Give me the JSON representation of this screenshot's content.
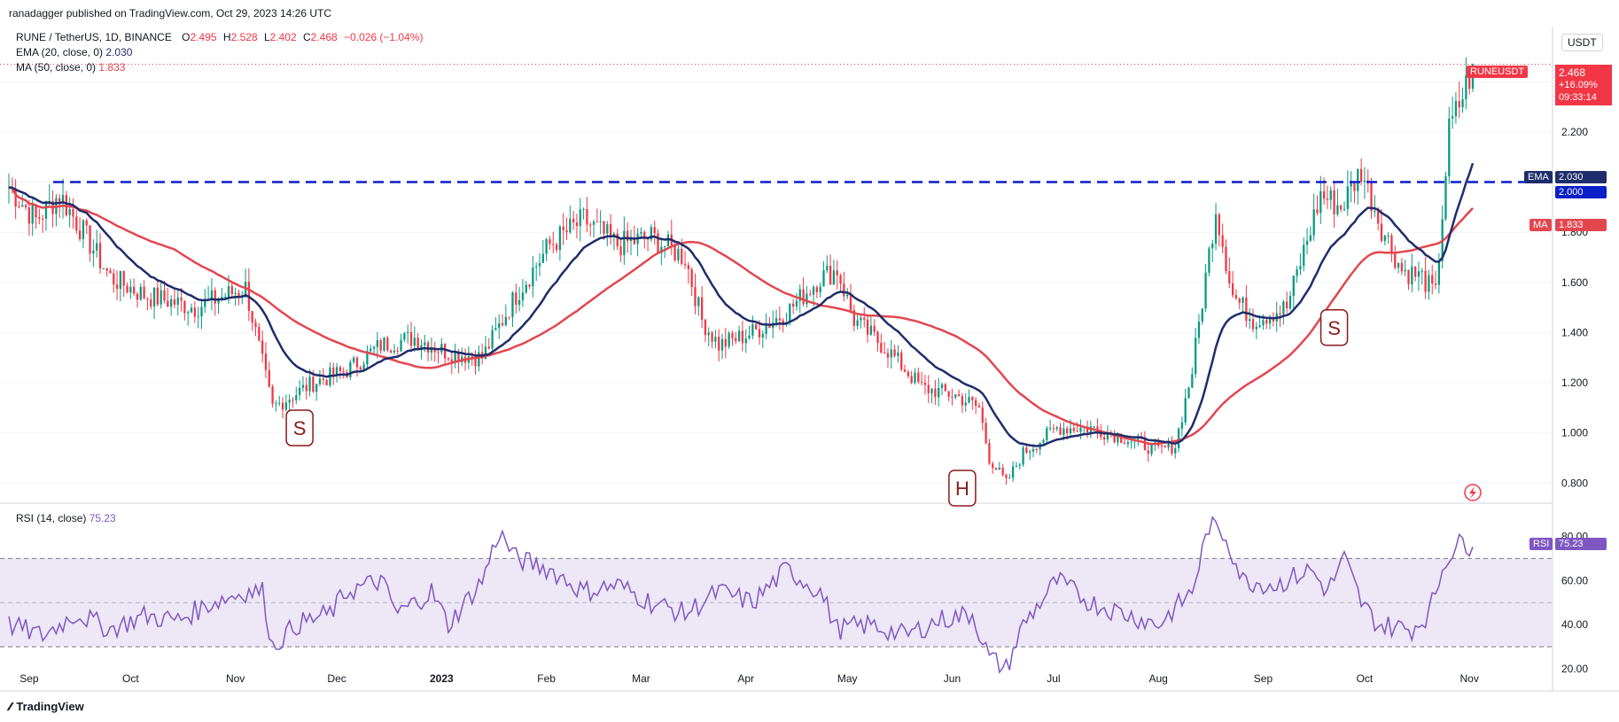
{
  "attribution": "ranadagger published on TradingView.com, Oct 29, 2023 14:26 UTC",
  "brand": "TradingView",
  "header": {
    "symbol": "RUNE / TetherUS, 1D, BINANCE",
    "ohlc": {
      "open": "2.495",
      "high": "2.528",
      "low": "2.402",
      "close": "2.468",
      "change": "−0.026 (−1.04%)"
    },
    "ema_label": "EMA (20, close, 0)",
    "ema_value": "2.030",
    "ma_label": "MA (50, close, 0)",
    "ma_value": "1.833"
  },
  "price_axis": {
    "currency": "USDT",
    "ticks": [
      "2.200",
      "1.800",
      "1.600",
      "1.400",
      "1.200",
      "1.000",
      "0.800"
    ]
  },
  "price_tag": {
    "ticker": "RUNEUSDT",
    "price": "2.468",
    "change": "+16.09%",
    "countdown": "09:33:14"
  },
  "level_tags": {
    "ema_label": "EMA",
    "ema_value": "2.030",
    "level_value": "2.000",
    "ma_label": "MA",
    "ma_value": "1.833"
  },
  "patterns": [
    "S",
    "H",
    "S"
  ],
  "rsi": {
    "label": "RSI (14, close)",
    "value": "75.23",
    "tag_label": "RSI",
    "tag_value": "75.23",
    "ticks": [
      "80.00",
      "60.00",
      "40.00",
      "20.00"
    ]
  },
  "time_axis": [
    "Sep",
    "Oct",
    "Nov",
    "Dec",
    "2023",
    "Feb",
    "Mar",
    "Apr",
    "May",
    "Jun",
    "Jul",
    "Aug",
    "Sep",
    "Oct",
    "Nov"
  ],
  "colors": {
    "up": "#089981",
    "down": "#f23645",
    "ema": "#1f2d6b",
    "ma": "#e2474f",
    "level": "#0b1fc8",
    "rsi": "#7e57c2",
    "rsi_band": "#ede7f6"
  },
  "chart_data": {
    "type": "candlestick",
    "horizontal_level": 2.0,
    "price_range": [
      0.72,
      2.62
    ],
    "rsi_range": [
      10,
      95
    ],
    "rsi_bands": [
      30,
      50,
      70
    ],
    "anchors": {
      "close": [
        [
          0,
          1.98
        ],
        [
          8,
          1.85
        ],
        [
          15,
          1.95
        ],
        [
          22,
          1.8
        ],
        [
          30,
          1.62
        ],
        [
          40,
          1.55
        ],
        [
          55,
          1.5
        ],
        [
          70,
          1.58
        ],
        [
          78,
          1.1
        ],
        [
          90,
          1.2
        ],
        [
          100,
          1.25
        ],
        [
          110,
          1.35
        ],
        [
          120,
          1.38
        ],
        [
          130,
          1.32
        ],
        [
          140,
          1.3
        ],
        [
          150,
          1.55
        ],
        [
          160,
          1.75
        ],
        [
          170,
          1.85
        ],
        [
          180,
          1.75
        ],
        [
          190,
          1.78
        ],
        [
          200,
          1.7
        ],
        [
          205,
          1.45
        ],
        [
          210,
          1.35
        ],
        [
          220,
          1.4
        ],
        [
          230,
          1.48
        ],
        [
          240,
          1.62
        ],
        [
          245,
          1.65
        ],
        [
          250,
          1.45
        ],
        [
          260,
          1.33
        ],
        [
          270,
          1.18
        ],
        [
          280,
          1.15
        ],
        [
          287,
          1.1
        ],
        [
          290,
          0.9
        ],
        [
          295,
          0.8
        ],
        [
          300,
          0.92
        ],
        [
          310,
          1.02
        ],
        [
          320,
          1.02
        ],
        [
          330,
          0.98
        ],
        [
          340,
          0.93
        ],
        [
          345,
          0.95
        ],
        [
          350,
          1.25
        ],
        [
          357,
          1.9
        ],
        [
          362,
          1.55
        ],
        [
          368,
          1.45
        ],
        [
          378,
          1.5
        ],
        [
          388,
          1.95
        ],
        [
          394,
          1.9
        ],
        [
          400,
          2.05
        ],
        [
          406,
          1.82
        ],
        [
          412,
          1.65
        ],
        [
          418,
          1.62
        ],
        [
          422,
          1.55
        ],
        [
          426,
          2.2
        ],
        [
          432,
          2.42
        ],
        [
          433,
          2.47
        ]
      ],
      "rsi": [
        [
          0,
          40
        ],
        [
          10,
          35
        ],
        [
          20,
          45
        ],
        [
          30,
          38
        ],
        [
          40,
          44
        ],
        [
          50,
          42
        ],
        [
          60,
          50
        ],
        [
          70,
          55
        ],
        [
          75,
          55
        ],
        [
          78,
          30
        ],
        [
          85,
          40
        ],
        [
          95,
          45
        ],
        [
          100,
          55
        ],
        [
          110,
          60
        ],
        [
          115,
          45
        ],
        [
          125,
          55
        ],
        [
          130,
          40
        ],
        [
          140,
          60
        ],
        [
          145,
          82
        ],
        [
          150,
          70
        ],
        [
          160,
          65
        ],
        [
          170,
          55
        ],
        [
          180,
          58
        ],
        [
          190,
          50
        ],
        [
          200,
          45
        ],
        [
          210,
          55
        ],
        [
          220,
          50
        ],
        [
          230,
          65
        ],
        [
          240,
          55
        ],
        [
          245,
          38
        ],
        [
          255,
          40
        ],
        [
          265,
          35
        ],
        [
          275,
          42
        ],
        [
          285,
          45
        ],
        [
          290,
          25
        ],
        [
          295,
          20
        ],
        [
          300,
          40
        ],
        [
          310,
          60
        ],
        [
          320,
          50
        ],
        [
          330,
          45
        ],
        [
          340,
          40
        ],
        [
          350,
          55
        ],
        [
          355,
          85
        ],
        [
          360,
          80
        ],
        [
          365,
          60
        ],
        [
          375,
          58
        ],
        [
          385,
          65
        ],
        [
          390,
          55
        ],
        [
          395,
          70
        ],
        [
          400,
          50
        ],
        [
          405,
          40
        ],
        [
          415,
          38
        ],
        [
          420,
          45
        ],
        [
          425,
          70
        ],
        [
          430,
          78
        ],
        [
          433,
          75.23
        ]
      ]
    },
    "moving_averages": [
      "EMA 20",
      "MA 50"
    ]
  }
}
